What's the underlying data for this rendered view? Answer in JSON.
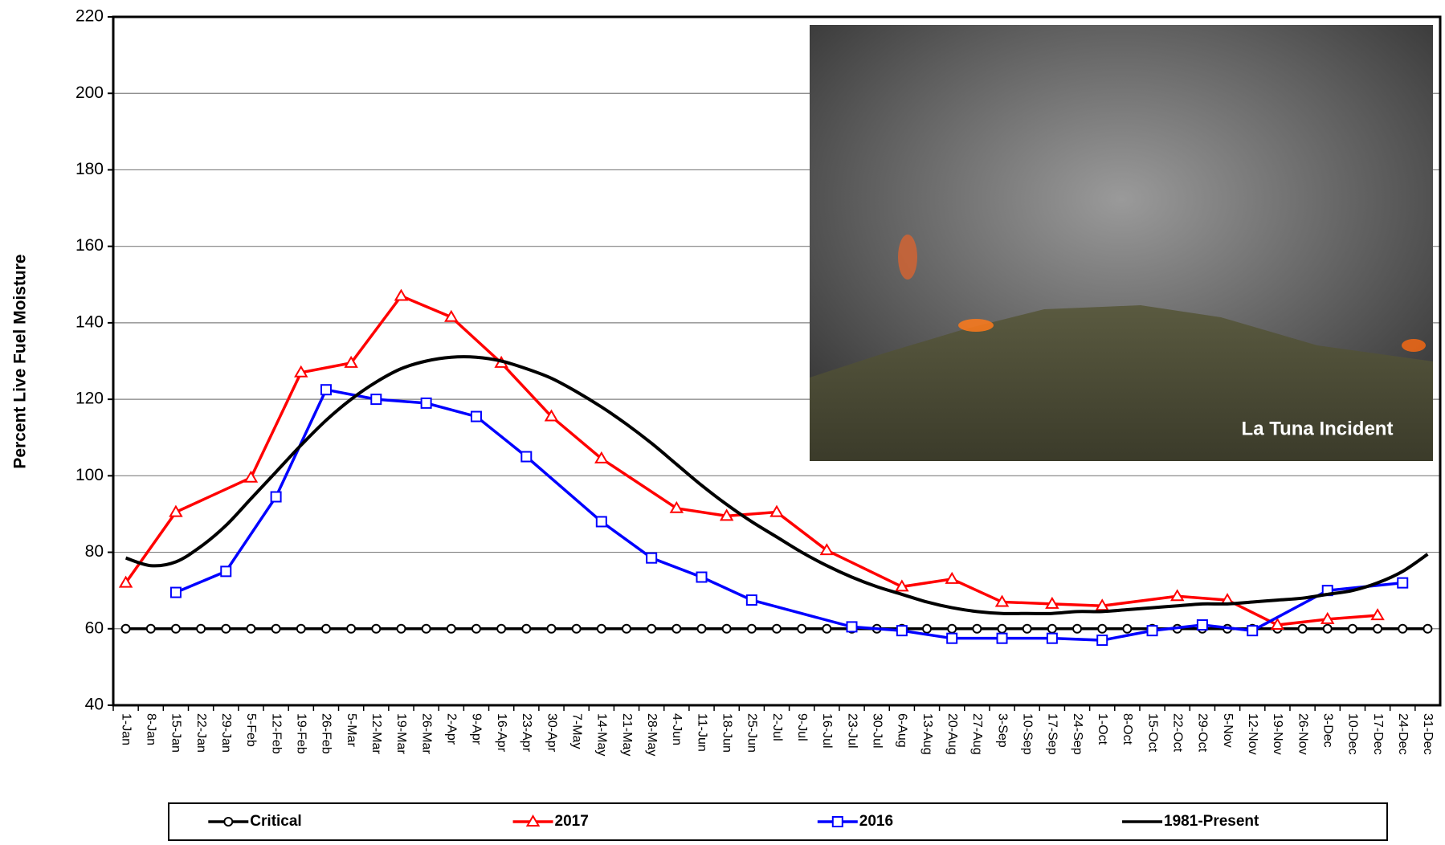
{
  "chart_data": {
    "type": "line",
    "y_label": "Percent Live Fuel Moisture",
    "annotation": "La Tuna Incident",
    "categories": [
      "1-Jan",
      "8-Jan",
      "15-Jan",
      "22-Jan",
      "29-Jan",
      "5-Feb",
      "12-Feb",
      "19-Feb",
      "26-Feb",
      "5-Mar",
      "12-Mar",
      "19-Mar",
      "26-Mar",
      "2-Apr",
      "9-Apr",
      "16-Apr",
      "23-Apr",
      "30-Apr",
      "7-May",
      "14-May",
      "21-May",
      "28-May",
      "4-Jun",
      "11-Jun",
      "18-Jun",
      "25-Jun",
      "2-Jul",
      "9-Jul",
      "16-Jul",
      "23-Jul",
      "30-Jul",
      "6-Aug",
      "13-Aug",
      "20-Aug",
      "27-Aug",
      "3-Sep",
      "10-Sep",
      "17-Sep",
      "24-Sep",
      "1-Oct",
      "8-Oct",
      "15-Oct",
      "22-Oct",
      "29-Oct",
      "5-Nov",
      "12-Nov",
      "19-Nov",
      "26-Nov",
      "3-Dec",
      "10-Dec",
      "17-Dec",
      "24-Dec",
      "31-Dec"
    ],
    "ylim": [
      40,
      220
    ],
    "yticks": [
      40,
      60,
      80,
      100,
      120,
      140,
      160,
      180,
      200,
      220
    ],
    "grid": true,
    "legend": "bottom",
    "series": [
      {
        "name": "Critical",
        "color": "#000000",
        "marker": "circle",
        "x": [
          "1-Jan",
          "8-Jan",
          "15-Jan",
          "22-Jan",
          "29-Jan",
          "5-Feb",
          "12-Feb",
          "19-Feb",
          "26-Feb",
          "5-Mar",
          "12-Mar",
          "19-Mar",
          "26-Mar",
          "2-Apr",
          "9-Apr",
          "16-Apr",
          "23-Apr",
          "30-Apr",
          "7-May",
          "14-May",
          "21-May",
          "28-May",
          "4-Jun",
          "11-Jun",
          "18-Jun",
          "25-Jun",
          "2-Jul",
          "9-Jul",
          "16-Jul",
          "23-Jul",
          "30-Jul",
          "6-Aug",
          "13-Aug",
          "20-Aug",
          "27-Aug",
          "3-Sep",
          "10-Sep",
          "17-Sep",
          "24-Sep",
          "1-Oct",
          "8-Oct",
          "15-Oct",
          "22-Oct",
          "29-Oct",
          "5-Nov",
          "12-Nov",
          "19-Nov",
          "26-Nov",
          "3-Dec",
          "10-Dec",
          "17-Dec",
          "24-Dec",
          "31-Dec"
        ],
        "values": [
          60,
          60,
          60,
          60,
          60,
          60,
          60,
          60,
          60,
          60,
          60,
          60,
          60,
          60,
          60,
          60,
          60,
          60,
          60,
          60,
          60,
          60,
          60,
          60,
          60,
          60,
          60,
          60,
          60,
          60,
          60,
          60,
          60,
          60,
          60,
          60,
          60,
          60,
          60,
          60,
          60,
          60,
          60,
          60,
          60,
          60,
          60,
          60,
          60,
          60,
          60,
          60,
          60
        ]
      },
      {
        "name": "2017",
        "color": "#ff0000",
        "marker": "triangle",
        "x": [
          "1-Jan",
          "15-Jan",
          "5-Feb",
          "19-Feb",
          "5-Mar",
          "19-Mar",
          "2-Apr",
          "16-Apr",
          "30-Apr",
          "14-May",
          "4-Jun",
          "18-Jun",
          "2-Jul",
          "16-Jul",
          "6-Aug",
          "20-Aug",
          "3-Sep",
          "17-Sep",
          "1-Oct",
          "22-Oct",
          "5-Nov",
          "19-Nov",
          "3-Dec",
          "17-Dec"
        ],
        "values": [
          72,
          90.5,
          99.5,
          127,
          129.5,
          147,
          141.5,
          129.5,
          115.5,
          104.5,
          91.5,
          89.5,
          90.5,
          80.5,
          71,
          73,
          67,
          66.5,
          66,
          68.5,
          67.5,
          61,
          62.5,
          63.5
        ]
      },
      {
        "name": "2016",
        "color": "#0000ff",
        "marker": "square",
        "x": [
          "15-Jan",
          "29-Jan",
          "12-Feb",
          "26-Feb",
          "12-Mar",
          "26-Mar",
          "9-Apr",
          "23-Apr",
          "14-May",
          "28-May",
          "11-Jun",
          "25-Jun",
          "23-Jul",
          "6-Aug",
          "20-Aug",
          "3-Sep",
          "17-Sep",
          "1-Oct",
          "15-Oct",
          "29-Oct",
          "12-Nov",
          "3-Dec",
          "24-Dec"
        ],
        "values": [
          69.5,
          75,
          94.5,
          122.5,
          120,
          119,
          115.5,
          105,
          88,
          78.5,
          73.5,
          67.5,
          60.5,
          59.5,
          57.5,
          57.5,
          57.5,
          57,
          59.5,
          61,
          59.5,
          70,
          72
        ]
      },
      {
        "name": "1981-Present",
        "color": "#000000",
        "marker": "none",
        "smooth": true,
        "x": [
          "1-Jan",
          "8-Jan",
          "15-Jan",
          "22-Jan",
          "29-Jan",
          "5-Feb",
          "12-Feb",
          "19-Feb",
          "26-Feb",
          "5-Mar",
          "12-Mar",
          "19-Mar",
          "26-Mar",
          "2-Apr",
          "9-Apr",
          "16-Apr",
          "23-Apr",
          "30-Apr",
          "7-May",
          "14-May",
          "21-May",
          "28-May",
          "4-Jun",
          "11-Jun",
          "18-Jun",
          "25-Jun",
          "2-Jul",
          "9-Jul",
          "16-Jul",
          "23-Jul",
          "30-Jul",
          "6-Aug",
          "13-Aug",
          "20-Aug",
          "27-Aug",
          "3-Sep",
          "10-Sep",
          "17-Sep",
          "24-Sep",
          "1-Oct",
          "8-Oct",
          "15-Oct",
          "22-Oct",
          "29-Oct",
          "5-Nov",
          "12-Nov",
          "19-Nov",
          "26-Nov",
          "3-Dec",
          "10-Dec",
          "17-Dec",
          "24-Dec",
          "31-Dec"
        ],
        "values": [
          78.5,
          76.5,
          77.5,
          81.5,
          87,
          94,
          101,
          108,
          114.5,
          120,
          124.5,
          128,
          130,
          131,
          131,
          130,
          128,
          125.5,
          122,
          118,
          113.5,
          108.5,
          103,
          97.5,
          92.5,
          88,
          84,
          80,
          76.5,
          73.5,
          71,
          69,
          67,
          65.5,
          64.5,
          64,
          64,
          64,
          64.5,
          64.5,
          65,
          65.5,
          66,
          66.5,
          66.5,
          67,
          67.5,
          68,
          69,
          70,
          72,
          75,
          79.5
        ]
      }
    ]
  }
}
